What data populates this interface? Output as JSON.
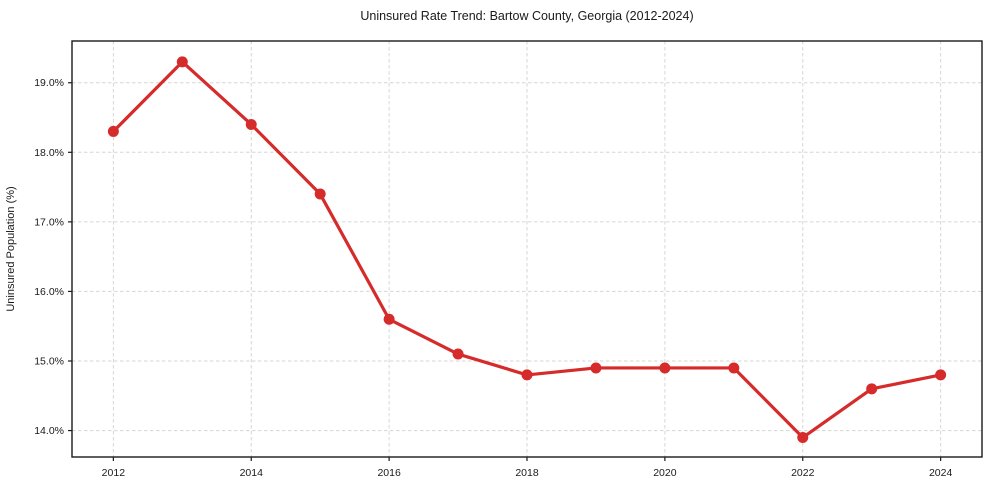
{
  "chart_data": {
    "type": "line",
    "title": "Uninsured Rate Trend: Bartow County, Georgia (2012-2024)",
    "xlabel": "",
    "ylabel": "Uninsured Population (%)",
    "x": [
      2012,
      2013,
      2014,
      2015,
      2016,
      2017,
      2018,
      2019,
      2020,
      2021,
      2022,
      2023,
      2024
    ],
    "values": [
      18.3,
      19.3,
      18.4,
      17.4,
      15.6,
      15.1,
      14.8,
      14.9,
      14.9,
      14.9,
      13.9,
      14.6,
      14.8
    ],
    "xlim": [
      2011.4,
      2024.6
    ],
    "ylim": [
      13.62,
      19.6
    ],
    "xticks": {
      "values": [
        2012,
        2014,
        2016,
        2018,
        2020,
        2022,
        2024
      ],
      "labels": [
        "2012",
        "2014",
        "2016",
        "2018",
        "2020",
        "2022",
        "2024"
      ]
    },
    "yticks": {
      "values": [
        14,
        15,
        16,
        17,
        18,
        19
      ],
      "labels": [
        "14.0%",
        "15.0%",
        "16.0%",
        "17.0%",
        "18.0%",
        "19.0%"
      ]
    },
    "grid": true,
    "grid_style": "dashed",
    "legend": false,
    "line_color": "#d62b2b",
    "grid_color": "#d6d6d6",
    "frame_color": "#1a1a1a",
    "marker": "circle"
  }
}
